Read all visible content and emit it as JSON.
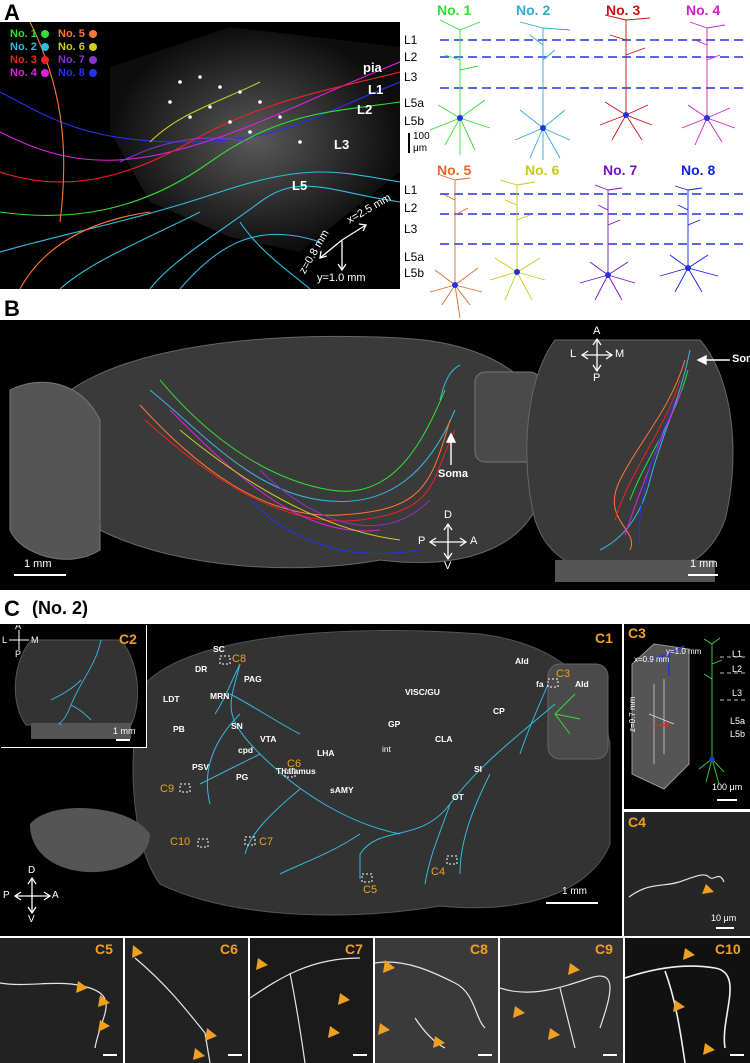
{
  "panel_a": {
    "label": "A",
    "legend": [
      {
        "label": "No. 1",
        "color": "#33dd33"
      },
      {
        "label": "No. 5",
        "color": "#ff7733"
      },
      {
        "label": "No. 2",
        "color": "#33bbdd"
      },
      {
        "label": "No. 6",
        "color": "#cccc22"
      },
      {
        "label": "No. 3",
        "color": "#ee2222"
      },
      {
        "label": "No. 7",
        "color": "#8833cc"
      },
      {
        "label": "No. 4",
        "color": "#dd22dd"
      },
      {
        "label": "No. 8",
        "color": "#2233ee"
      }
    ],
    "image_layers": [
      "pia",
      "L1",
      "L2",
      "L3",
      "L5"
    ],
    "axes": {
      "x": "x=2.5 mm",
      "y": "y=1.0 mm",
      "z": "z=0.8 mm"
    },
    "neurons_top": [
      {
        "label": "No. 1",
        "color": "#33dd33"
      },
      {
        "label": "No. 2",
        "color": "#33aacc"
      },
      {
        "label": "No. 3",
        "color": "#cc1111"
      },
      {
        "label": "No. 4",
        "color": "#cc22cc"
      }
    ],
    "neurons_bottom": [
      {
        "label": "No. 5",
        "color": "#e2682a"
      },
      {
        "label": "No. 6",
        "color": "#c8c820"
      },
      {
        "label": "No. 7",
        "color": "#7711cc"
      },
      {
        "label": "No. 8",
        "color": "#1122dd"
      }
    ],
    "layers": [
      "L1",
      "L2",
      "L3",
      "L5a",
      "L5b"
    ],
    "scale_value": "100",
    "scale_unit": "μm"
  },
  "panel_b": {
    "label": "B",
    "soma_label": "Soma",
    "scale_left": "1 mm",
    "scale_right": "1 mm",
    "axes_lateral": {
      "d": "D",
      "v": "V",
      "p": "P",
      "a": "A"
    },
    "axes_dorsal": {
      "a": "A",
      "p": "P",
      "l": "L",
      "m": "M"
    }
  },
  "panel_c": {
    "label": "C",
    "title": "(No. 2)",
    "c1": "C1",
    "c2": "C2",
    "c3": "C3",
    "c4": "C4",
    "regions": [
      "SC",
      "DR",
      "PAG",
      "LDT",
      "MRN",
      "PB",
      "SN",
      "VTA",
      "cpd",
      "PSV",
      "PG",
      "Thalamus",
      "LHA",
      "sAMY",
      "int",
      "GP",
      "CLA",
      "SI",
      "OT",
      "VISC/GU",
      "CP",
      "AId",
      "fa",
      "AId"
    ],
    "callouts": [
      "C8",
      "C6",
      "C9",
      "C10",
      "C7",
      "C5",
      "C4",
      "C3"
    ],
    "scale_c1": "1 mm",
    "scale_c2": "1 mm",
    "scale_c3": "100 μm",
    "scale_c4": "10 μm",
    "c3_axes": {
      "y": "y=1.0 mm",
      "x": "x=0.9 mm",
      "z": "z=0.7 mm"
    },
    "c3_layers": [
      "L1",
      "L2",
      "L3",
      "L5a",
      "L5b"
    ],
    "c2_axes": {
      "a": "A",
      "p": "P",
      "l": "L",
      "m": "M"
    },
    "c1_axes": {
      "d": "D",
      "v": "V",
      "p": "P",
      "a": "A"
    },
    "bottom_panels": [
      "C5",
      "C6",
      "C7",
      "C8",
      "C9",
      "C10"
    ]
  }
}
